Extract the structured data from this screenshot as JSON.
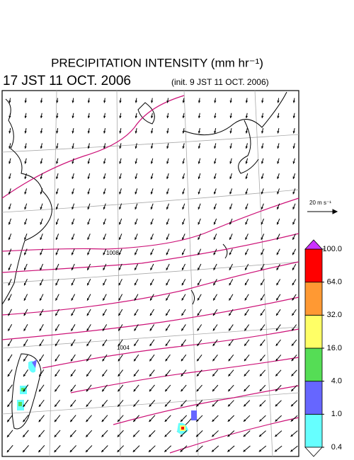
{
  "header": {
    "title": "PRECIPITATION INTENSITY (mm hr⁻¹)",
    "valid_time": "17 JST 11 OCT. 2006",
    "init_time": "(init. 9 JST 11 OCT. 2006)"
  },
  "reference_vector": {
    "label": "20 m s⁻¹"
  },
  "isobar_labels": [
    "1008",
    "1004"
  ],
  "colorbar": {
    "levels": [
      {
        "value": 0.4,
        "label": "0.4"
      },
      {
        "value": 1,
        "label": "1.0"
      },
      {
        "value": 4,
        "label": "4.0"
      },
      {
        "value": 16,
        "label": "16.0"
      },
      {
        "value": 32,
        "label": "32.0"
      },
      {
        "value": 64,
        "label": "64.0"
      },
      {
        "value": 100,
        "label": "100.0"
      }
    ],
    "colors": [
      "#66ffff",
      "#6666ff",
      "#55dd55",
      "#ffff66",
      "#ff9933",
      "#ff0000"
    ],
    "over_color": "#cc33ff",
    "under_color": "#ffffff"
  }
}
